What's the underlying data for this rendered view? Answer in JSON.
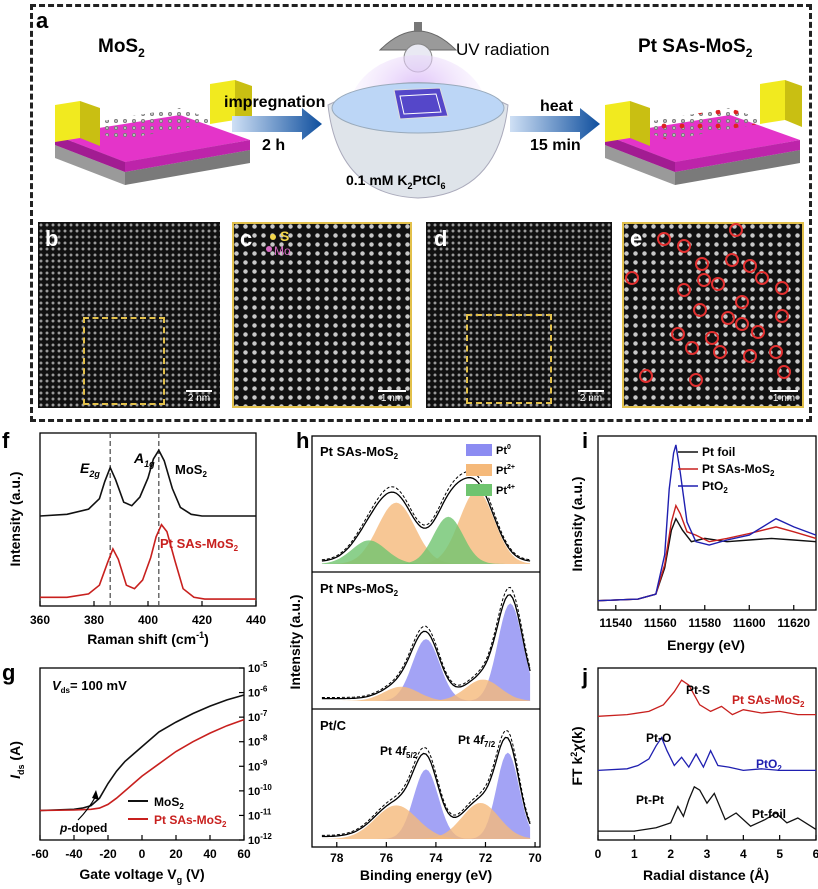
{
  "panels": {
    "a": "a",
    "b": "b",
    "c": "c",
    "d": "d",
    "e": "e",
    "f": "f",
    "g": "g",
    "h": "h",
    "i": "i",
    "j": "j"
  },
  "schematic": {
    "left_title": "MoS",
    "left_title_sub": "2",
    "right_title": "Pt SAs-MoS",
    "right_title_sub": "2",
    "uv_label": "UV radiation",
    "step1_label": "impregnation",
    "step1_time": "2 h",
    "step2_label": "heat",
    "step2_time": "15 min",
    "solution_label": "0.1 mM K",
    "solution_sub1": "2",
    "solution_mid": "PtCl",
    "solution_sub2": "6"
  },
  "micrographs": {
    "b_scale": "2 nm",
    "c_scale": "1 nm",
    "d_scale": "2 nm",
    "e_scale": "1 nm",
    "legend_s": "S",
    "legend_mo": "Mo"
  },
  "colors": {
    "black": "#111111",
    "red": "#c8201e",
    "blue": "#1f1fb0",
    "pt0": "#8c8cf2",
    "pt2": "#f5b97a",
    "pt4": "#6fc46f",
    "gold": "#e2c04a"
  },
  "chart_data": [
    {
      "id": "f",
      "type": "line",
      "xlabel": "Raman shift (cm",
      "xlabel_sup": "-1",
      "xlabel_end": ")",
      "ylabel": "Intensity (a.u.)",
      "xlim": [
        360,
        440
      ],
      "xticks": [
        "360",
        "380",
        "400",
        "420",
        "440"
      ],
      "vlines": [
        386,
        404
      ],
      "peak_labels": {
        "e2g": "E",
        "e2g_sub": "2g",
        "a1g": "A",
        "a1g_sub": "1g"
      },
      "series": [
        {
          "name": "MoS",
          "name_sub": "2",
          "color": "#111111",
          "x": [
            360,
            370,
            378,
            382,
            384,
            386,
            388,
            391,
            394,
            397,
            400,
            402,
            404,
            406,
            409,
            412,
            416,
            420,
            430,
            440
          ],
          "y": [
            0.52,
            0.53,
            0.56,
            0.62,
            0.72,
            0.8,
            0.73,
            0.6,
            0.58,
            0.63,
            0.74,
            0.85,
            0.9,
            0.84,
            0.68,
            0.57,
            0.53,
            0.52,
            0.52,
            0.52
          ]
        },
        {
          "name": "Pt SAs-MoS",
          "name_sub": "2",
          "color": "#c8201e",
          "x": [
            360,
            370,
            378,
            382,
            385,
            387,
            389,
            392,
            395,
            398,
            401,
            403,
            405,
            407,
            410,
            413,
            417,
            421,
            430,
            440
          ],
          "y": [
            0.05,
            0.05,
            0.07,
            0.12,
            0.25,
            0.33,
            0.27,
            0.12,
            0.1,
            0.15,
            0.28,
            0.4,
            0.47,
            0.43,
            0.26,
            0.1,
            0.05,
            0.04,
            0.04,
            0.04
          ]
        }
      ]
    },
    {
      "id": "g",
      "type": "line",
      "xlabel": "Gate voltage V",
      "xlabel_sub": "g",
      "xlabel_end": "  (V)",
      "ylabel": "I",
      "ylabel_sub": "ds",
      "ylabel_end": " (A)",
      "annotation": "V",
      "annotation_sub": "ds",
      "annotation_end": "= 100 mV",
      "arrow_label_italic": "p",
      "arrow_label": "-doped",
      "xlim": [
        -60,
        60
      ],
      "xticks": [
        "-60",
        "-40",
        "-20",
        "0",
        "20",
        "40",
        "60"
      ],
      "ylim_log": [
        -12,
        -5
      ],
      "yticks": [
        "10",
        "10",
        "10",
        "10",
        "10",
        "10",
        "10",
        "10"
      ],
      "ytick_exp": [
        "-5",
        "-6",
        "-7",
        "-8",
        "-9",
        "-10",
        "-11",
        "-12"
      ],
      "series": [
        {
          "name": "MoS",
          "name_sub": "2",
          "color": "#111111",
          "x": [
            -60,
            -40,
            -35,
            -30,
            -25,
            -20,
            -15,
            -10,
            -5,
            0,
            10,
            20,
            30,
            40,
            50,
            60
          ],
          "y": [
            -10.8,
            -10.75,
            -10.7,
            -10.6,
            -10.3,
            -9.7,
            -9.2,
            -8.8,
            -8.5,
            -8.2,
            -7.6,
            -7.2,
            -6.85,
            -6.55,
            -6.3,
            -6.1
          ]
        },
        {
          "name": "Pt SAs-MoS",
          "name_sub": "2",
          "color": "#c8201e",
          "x": [
            -60,
            -40,
            -30,
            -25,
            -20,
            -15,
            -10,
            -5,
            0,
            10,
            20,
            30,
            40,
            50,
            60
          ],
          "y": [
            -10.8,
            -10.78,
            -10.75,
            -10.7,
            -10.55,
            -10.3,
            -10.0,
            -9.7,
            -9.4,
            -8.9,
            -8.4,
            -8.0,
            -7.65,
            -7.35,
            -7.1
          ]
        }
      ]
    },
    {
      "id": "h",
      "type": "area",
      "xlabel": "Binding energy (eV)",
      "ylabel": "Intensity (a.u.)",
      "xlim": [
        79,
        69.8
      ],
      "xticks": [
        "78",
        "76",
        "74",
        "72",
        "70"
      ],
      "legend": [
        {
          "label": "Pt",
          "sup": "0",
          "color": "#8c8cf2"
        },
        {
          "label": "Pt",
          "sup": "2+",
          "color": "#f5b97a"
        },
        {
          "label": "Pt",
          "sup": "4+",
          "color": "#6fc46f"
        }
      ],
      "subpanels": [
        {
          "title": "Pt SAs-MoS",
          "title_sub": "2",
          "components": [
            {
              "type": "Pt2+",
              "center": 75.6,
              "height": 0.52,
              "width": 0.75
            },
            {
              "type": "Pt4+",
              "center": 76.7,
              "height": 0.2,
              "width": 0.7
            },
            {
              "type": "Pt2+",
              "center": 72.35,
              "height": 0.62,
              "width": 0.7
            },
            {
              "type": "Pt4+",
              "center": 73.5,
              "height": 0.4,
              "width": 0.6
            }
          ]
        },
        {
          "title": "Pt NPs-MoS",
          "title_sub": "2",
          "components": [
            {
              "type": "Pt0",
              "center": 74.4,
              "height": 0.52,
              "width": 0.55
            },
            {
              "type": "Pt2+",
              "center": 75.4,
              "height": 0.12,
              "width": 0.7
            },
            {
              "type": "Pt0",
              "center": 71.0,
              "height": 0.82,
              "width": 0.5
            },
            {
              "type": "Pt2+",
              "center": 72.1,
              "height": 0.18,
              "width": 0.7
            }
          ]
        },
        {
          "title": "Pt/C",
          "peak_label_1": "Pt 4",
          "peak_label_1_italic": "f",
          "peak_label_1_sub": "5/2",
          "peak_label_2": "Pt 4",
          "peak_label_2_italic": "f",
          "peak_label_2_sub": "7/2",
          "components": [
            {
              "type": "Pt0",
              "center": 74.4,
              "height": 0.58,
              "width": 0.5
            },
            {
              "type": "Pt2+",
              "center": 75.6,
              "height": 0.28,
              "width": 0.85
            },
            {
              "type": "Pt0",
              "center": 71.1,
              "height": 0.72,
              "width": 0.45
            },
            {
              "type": "Pt2+",
              "center": 72.2,
              "height": 0.3,
              "width": 0.75
            }
          ]
        }
      ]
    },
    {
      "id": "i",
      "type": "line",
      "xlabel": "Energy (eV)",
      "ylabel": "Intensity (a.u.)",
      "xlim": [
        11532,
        11630
      ],
      "xticks": [
        "11540",
        "11560",
        "11580",
        "11600",
        "11620"
      ],
      "series": [
        {
          "name": "Pt foil",
          "color": "#111111",
          "x": [
            11532,
            11550,
            11558,
            11562,
            11565,
            11567,
            11570,
            11574,
            11580,
            11590,
            11600,
            11610,
            11620,
            11630
          ],
          "y": [
            0.02,
            0.03,
            0.06,
            0.22,
            0.45,
            0.52,
            0.45,
            0.38,
            0.4,
            0.38,
            0.39,
            0.4,
            0.39,
            0.38
          ]
        },
        {
          "name": "Pt SAs-MoS",
          "name_sub": "2",
          "color": "#c8201e",
          "x": [
            11532,
            11550,
            11558,
            11562,
            11565,
            11567,
            11569,
            11572,
            11576,
            11582,
            11590,
            11600,
            11612,
            11620,
            11630
          ],
          "y": [
            0.02,
            0.03,
            0.06,
            0.24,
            0.5,
            0.6,
            0.55,
            0.44,
            0.42,
            0.38,
            0.4,
            0.43,
            0.47,
            0.44,
            0.4
          ]
        },
        {
          "name": "PtO",
          "name_sub": "2",
          "color": "#1f1fb0",
          "x": [
            11532,
            11550,
            11558,
            11562,
            11564,
            11566,
            11567,
            11569,
            11572,
            11576,
            11582,
            11590,
            11600,
            11612,
            11620,
            11630
          ],
          "y": [
            0.02,
            0.03,
            0.06,
            0.3,
            0.7,
            0.92,
            0.97,
            0.8,
            0.5,
            0.38,
            0.36,
            0.39,
            0.42,
            0.52,
            0.47,
            0.42
          ]
        }
      ]
    },
    {
      "id": "j",
      "type": "line",
      "xlabel": "Radial distance (Å)",
      "ylabel": "FT k",
      "ylabel_sup": "2",
      "ylabel_mid": "χ",
      "ylabel_end": "(k)",
      "xlim": [
        0,
        6
      ],
      "xticks": [
        "0",
        "1",
        "2",
        "3",
        "4",
        "5",
        "6"
      ],
      "series": [
        {
          "name": "Pt SAs-MoS",
          "name_sub": "2",
          "color": "#c8201e",
          "peak_label": "Pt-S",
          "x": [
            0,
            0.8,
            1.4,
            1.8,
            2.1,
            2.3,
            2.5,
            2.8,
            3.1,
            3.4,
            3.7,
            4.0,
            4.5,
            5.0,
            5.5,
            6.0
          ],
          "y": [
            0.73,
            0.74,
            0.76,
            0.8,
            0.88,
            0.95,
            0.92,
            0.8,
            0.76,
            0.79,
            0.74,
            0.77,
            0.75,
            0.76,
            0.74,
            0.74
          ]
        },
        {
          "name": "PtO",
          "name_sub": "2",
          "color": "#1f1fb0",
          "peak_label": "Pt-O",
          "x": [
            0,
            0.8,
            1.1,
            1.4,
            1.6,
            1.75,
            1.9,
            2.1,
            2.3,
            2.5,
            2.7,
            2.9,
            3.1,
            3.3,
            3.6,
            4.0,
            4.5,
            5.0,
            5.5,
            6.0
          ],
          "y": [
            0.4,
            0.41,
            0.43,
            0.47,
            0.55,
            0.6,
            0.52,
            0.43,
            0.48,
            0.42,
            0.5,
            0.42,
            0.52,
            0.43,
            0.42,
            0.4,
            0.41,
            0.4,
            0.4,
            0.4
          ]
        },
        {
          "name": "Pt-foil",
          "color": "#111111",
          "peak_label": "Pt-Pt",
          "x": [
            0,
            1.0,
            1.6,
            2.0,
            2.2,
            2.35,
            2.5,
            2.65,
            2.8,
            3.0,
            3.2,
            3.5,
            3.8,
            4.2,
            4.6,
            4.9,
            5.2,
            5.5,
            6.0
          ],
          "y": [
            0.03,
            0.03,
            0.05,
            0.08,
            0.18,
            0.12,
            0.22,
            0.3,
            0.28,
            0.2,
            0.26,
            0.1,
            0.14,
            0.06,
            0.1,
            0.14,
            0.08,
            0.11,
            0.04
          ]
        }
      ]
    }
  ]
}
